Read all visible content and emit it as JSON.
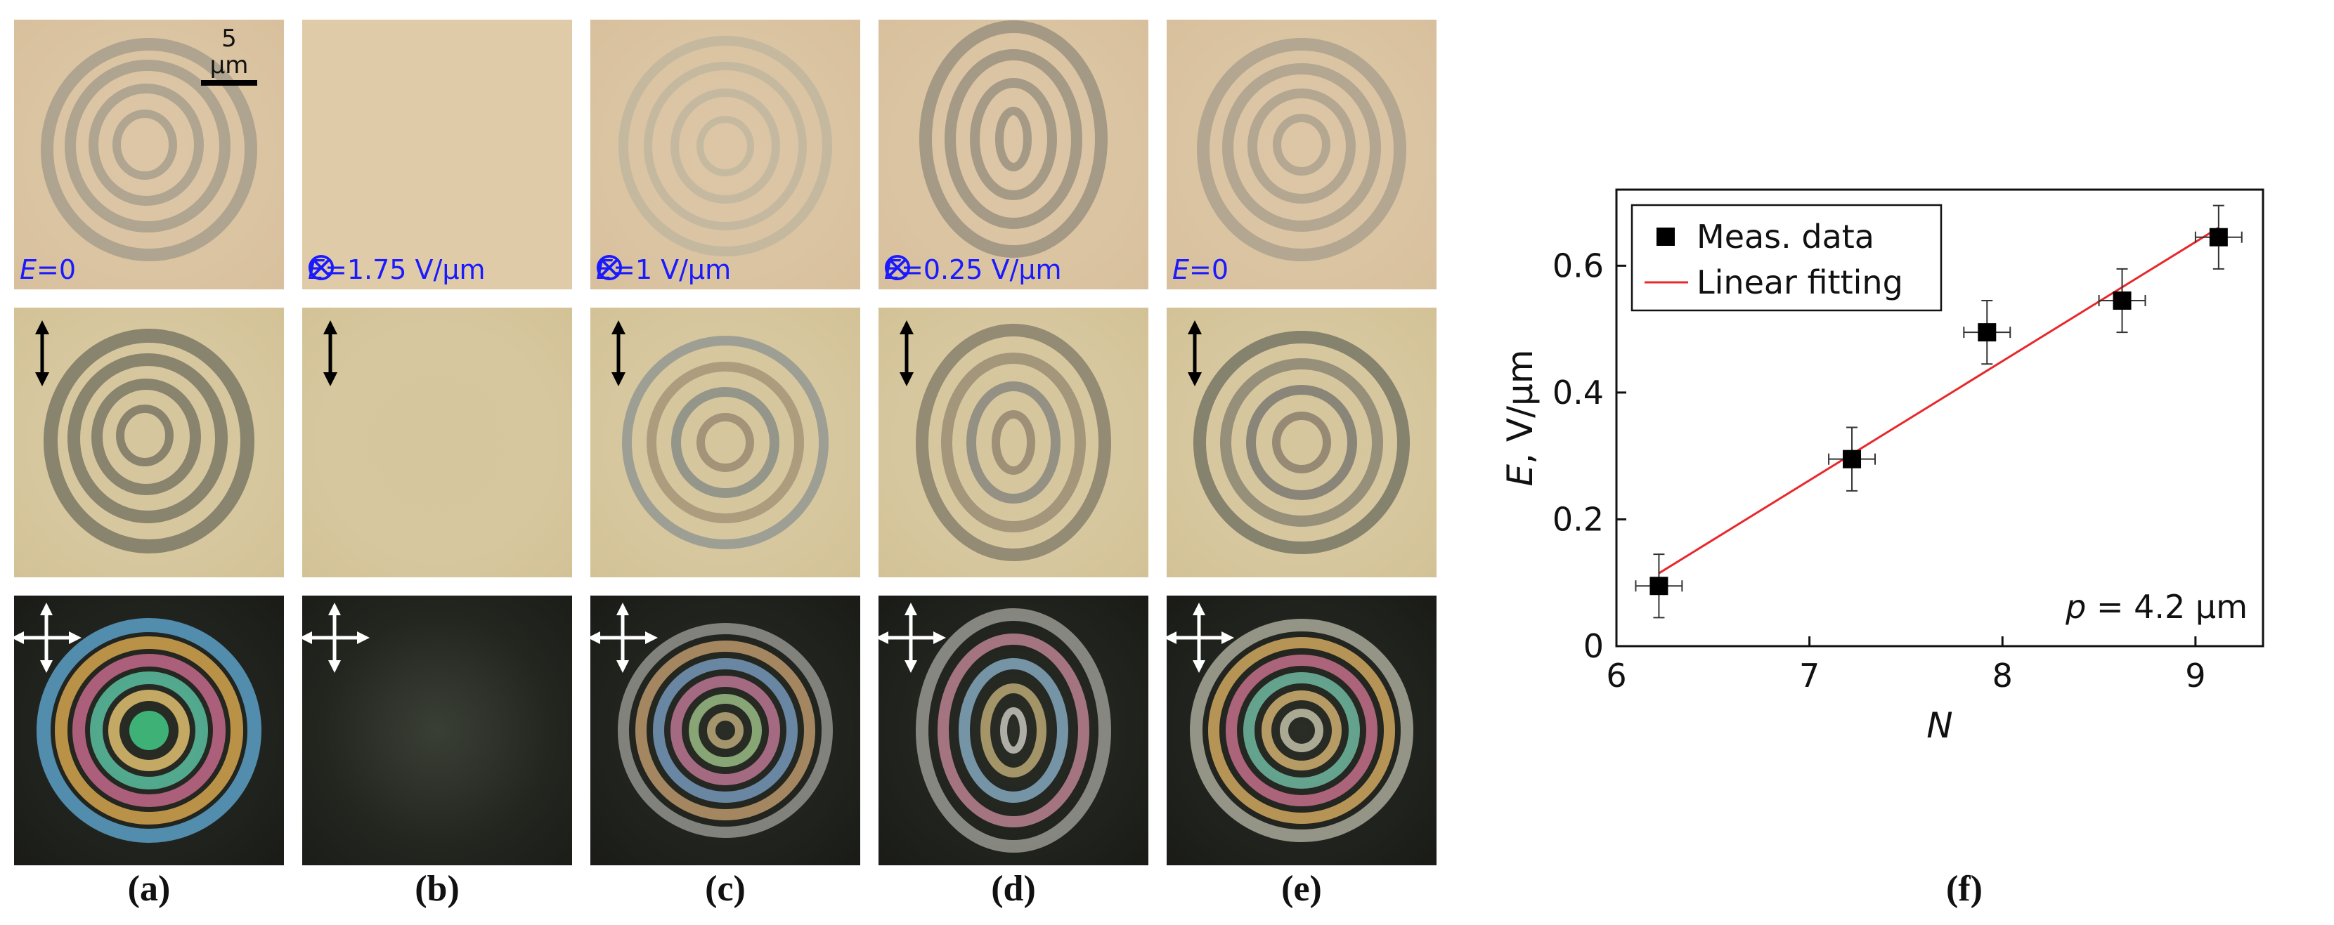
{
  "scale_bar": "5 μm",
  "rows": {
    "row1": [
      {
        "label_prefix": "",
        "label_symbol": "E",
        "label_value": "=0",
        "pattern": "rings"
      },
      {
        "label_prefix": "otimes",
        "label_symbol": "E",
        "label_value": "=1.75 V/μm",
        "pattern": "blank"
      },
      {
        "label_prefix": "otimes",
        "label_symbol": "E",
        "label_value": "=1 V/μm",
        "pattern": "faint-rings"
      },
      {
        "label_prefix": "otimes",
        "label_symbol": "E",
        "label_value": "=0.25 V/μm",
        "pattern": "oval-rings"
      },
      {
        "label_prefix": "",
        "label_symbol": "E",
        "label_value": "=0",
        "pattern": "rings"
      }
    ],
    "row2_icon": "vertical-polarizer-arrow-icon",
    "row3_icon": "crossed-polarizers-arrow-icon"
  },
  "panel_labels": [
    "(a)",
    "(b)",
    "(c)",
    "(d)",
    "(e)",
    "(f)"
  ],
  "colors": {
    "field_label": "#1a1aff",
    "fit_line": "#e8282a",
    "marker": "#000000"
  },
  "chart_data": {
    "type": "scatter",
    "xlabel": "N",
    "ylabel": "E, V/μm",
    "xlim": [
      6,
      9.35
    ],
    "ylim": [
      0,
      0.72
    ],
    "xticks": [
      6,
      7,
      8,
      9
    ],
    "yticks": [
      0,
      0.2,
      0.4,
      0.6
    ],
    "ytick_labels": [
      "0",
      "0.2",
      "0.4",
      "0.6"
    ],
    "legend": {
      "placement": "top-left",
      "entries": [
        "Meas. data",
        "Linear fitting"
      ]
    },
    "annotation": {
      "prefix": "p",
      "text": " = 4.2 μm"
    },
    "series": [
      {
        "name": "Meas. data",
        "x": [
          6.22,
          7.22,
          7.92,
          8.62,
          9.12
        ],
        "y": [
          0.095,
          0.295,
          0.495,
          0.545,
          0.645
        ],
        "x_err": [
          0.12,
          0.12,
          0.12,
          0.12,
          0.12
        ],
        "y_err": [
          0.05,
          0.05,
          0.05,
          0.05,
          0.05
        ]
      },
      {
        "name": "Linear fitting",
        "x": [
          6.22,
          9.12
        ],
        "y": [
          0.115,
          0.66
        ]
      }
    ]
  }
}
